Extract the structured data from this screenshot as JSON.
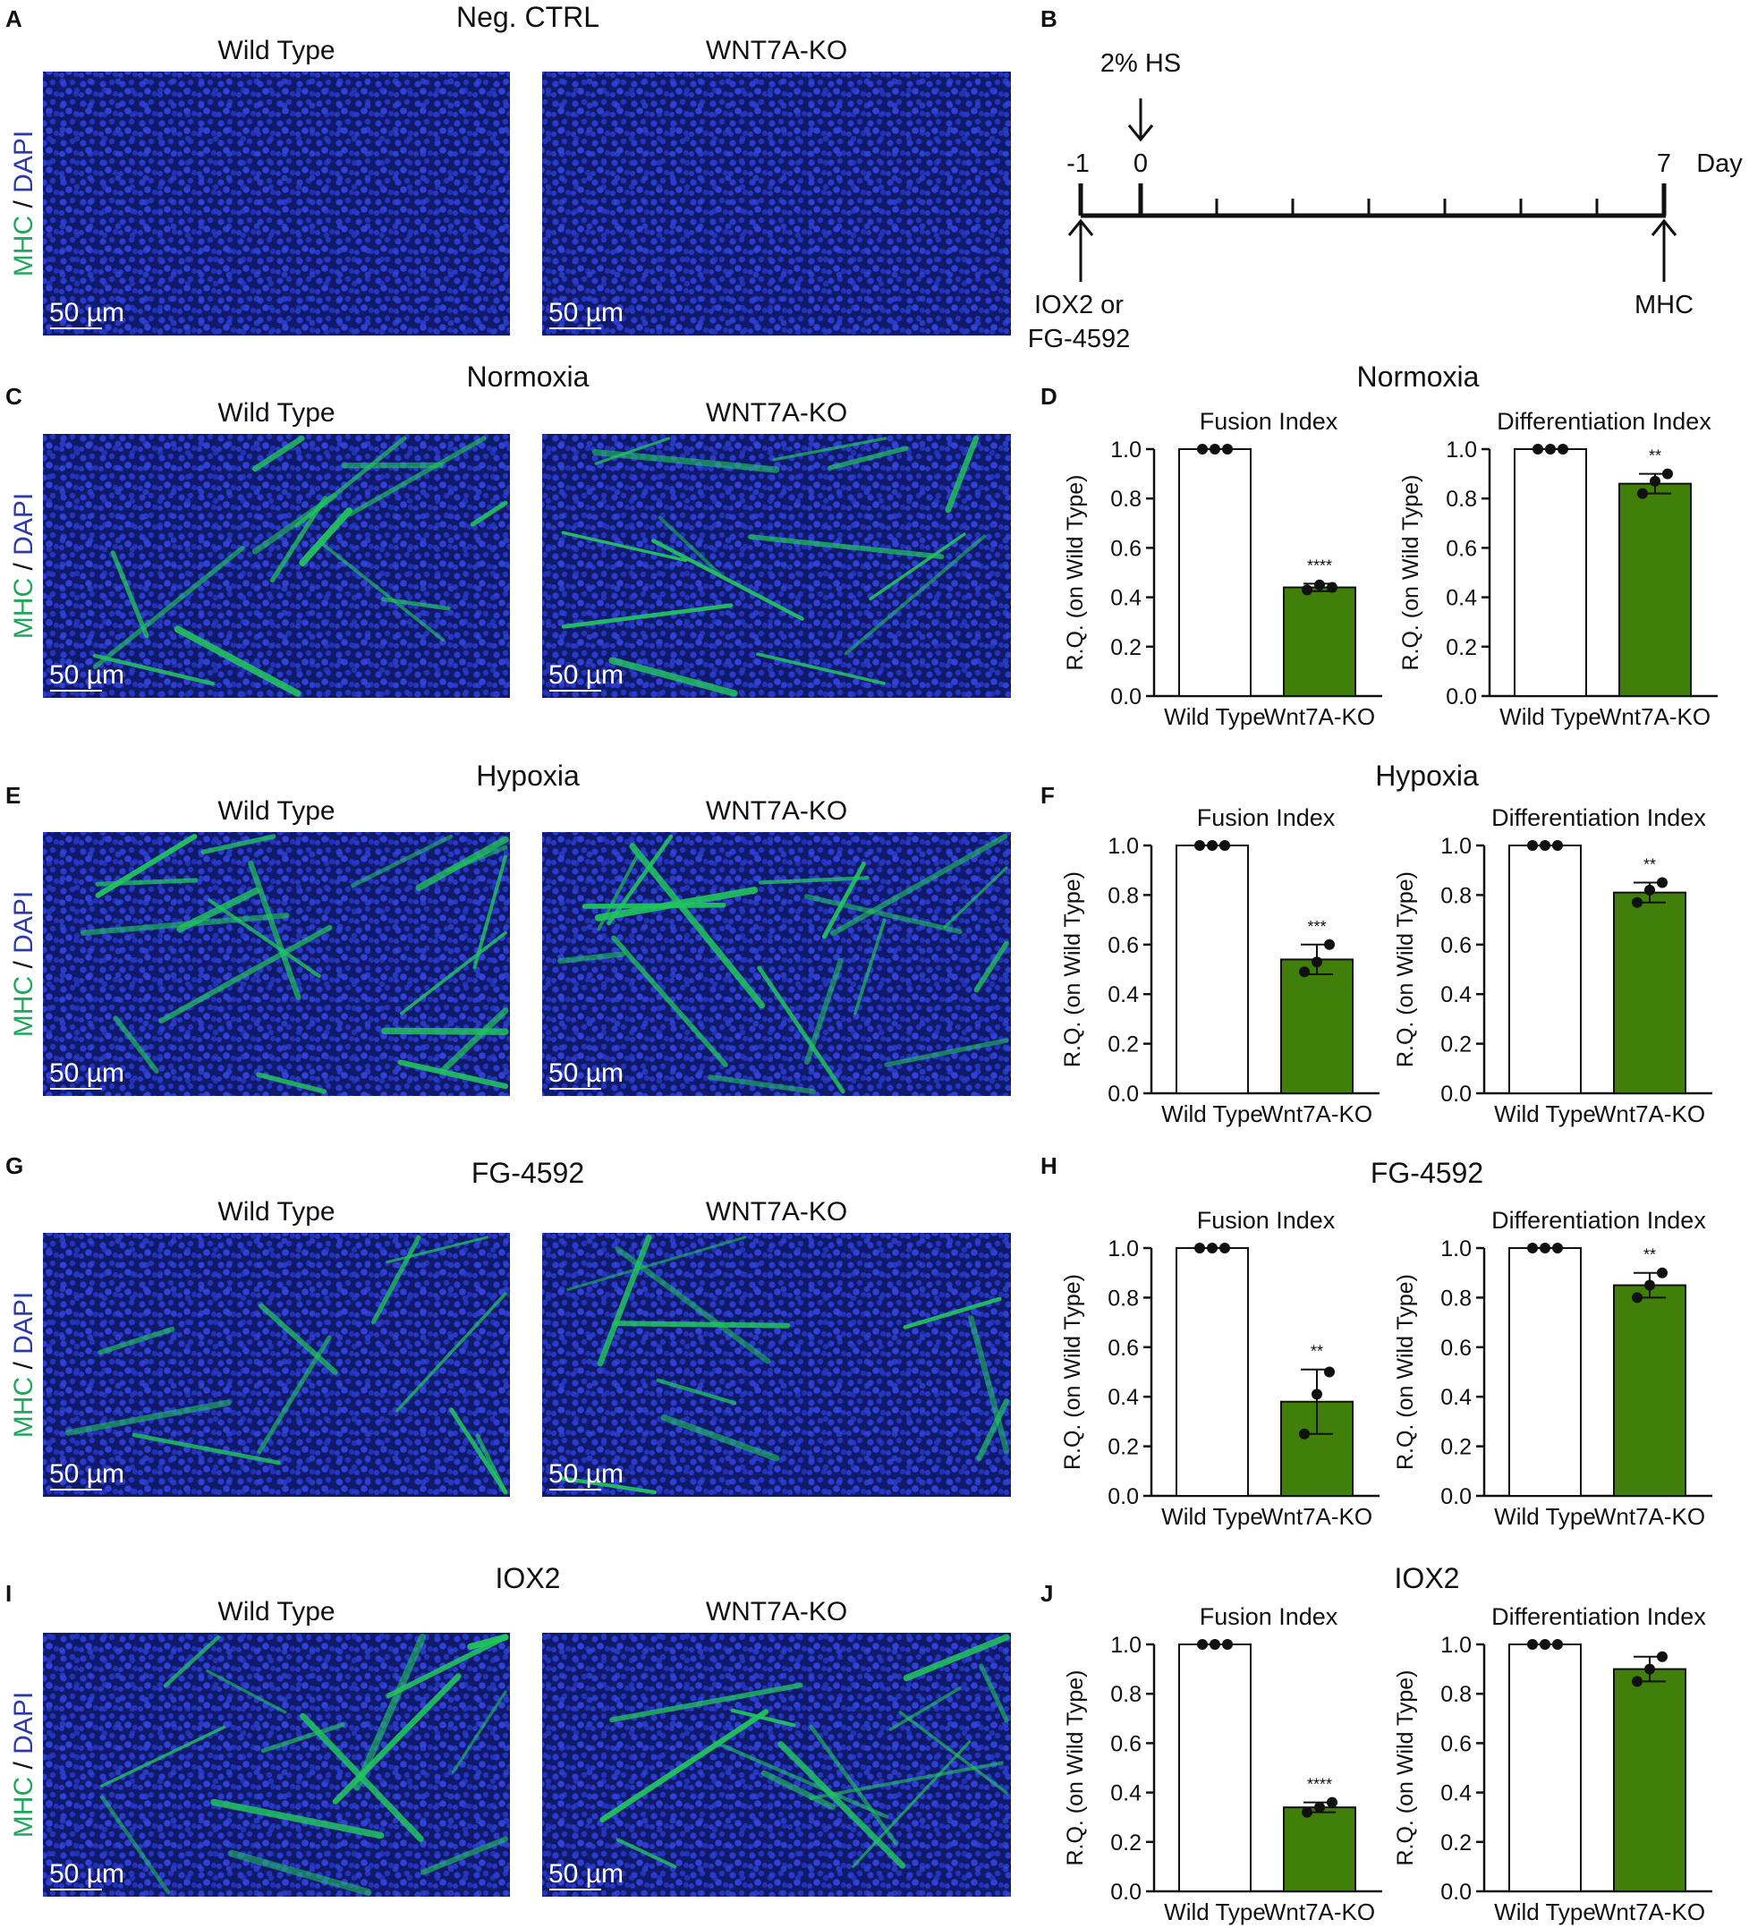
{
  "colors": {
    "mhc_green": "#22c55e",
    "dapi_blue": "#2633b8",
    "bar_wt": "#ffffff",
    "bar_ko": "#3f7f0a",
    "axis": "#111111"
  },
  "panel_letters": [
    "A",
    "B",
    "C",
    "D",
    "E",
    "F",
    "G",
    "H",
    "I",
    "J"
  ],
  "neg_ctrl": {
    "title": "Neg. CTRL"
  },
  "image_rows": [
    {
      "title": "Neg. CTRL",
      "left_label": "Wild Type",
      "right_label": "WNT7A-KO",
      "stain_mhc": "MHC",
      "stain_sep": " / ",
      "stain_dapi": "DAPI",
      "scale": "50 µm"
    },
    {
      "title": "Normoxia",
      "left_label": "Wild Type",
      "right_label": "WNT7A-KO",
      "stain_mhc": "MHC",
      "stain_sep": " / ",
      "stain_dapi": "DAPI",
      "scale": "50 µm"
    },
    {
      "title": "Hypoxia",
      "left_label": "Wild Type",
      "right_label": "WNT7A-KO",
      "stain_mhc": "MHC",
      "stain_sep": " / ",
      "stain_dapi": "DAPI",
      "scale": "50 µm"
    },
    {
      "title": "FG-4592",
      "left_label": "Wild Type",
      "right_label": "WNT7A-KO",
      "stain_mhc": "MHC",
      "stain_sep": " / ",
      "stain_dapi": "DAPI",
      "scale": "50 µm"
    },
    {
      "title": "IOX2",
      "left_label": "Wild Type",
      "right_label": "WNT7A-KO",
      "stain_mhc": "MHC",
      "stain_sep": " / ",
      "stain_dapi": "DAPI",
      "scale": "50 µm"
    }
  ],
  "timeline": {
    "hs_label": "2% HS",
    "day_minus1": "-1",
    "day_0": "0",
    "day_7": "7",
    "day_unit": "Day",
    "drug_label_1": "IOX2 or",
    "drug_label_2": "FG-4592",
    "readout": "MHC"
  },
  "chart_titles": [
    "Normoxia",
    "Hypoxia",
    "FG-4592",
    "IOX2"
  ],
  "chart_data": [
    {
      "type": "bar",
      "panel": "D",
      "condition": "Normoxia",
      "title": "Fusion Index",
      "ylabel": "R.Q. (on Wild Type)",
      "ylim": [
        0,
        1.0
      ],
      "yticks": [
        "0.0",
        "0.2",
        "0.4",
        "0.6",
        "0.8",
        "1.0"
      ],
      "categories": [
        "Wild Type",
        "Wnt7A-KO"
      ],
      "values": [
        1.0,
        0.44
      ],
      "errors": [
        0,
        0.015
      ],
      "points": [
        [
          1.0,
          1.0,
          1.0
        ],
        [
          0.43,
          0.45,
          0.44
        ]
      ],
      "significance": "****"
    },
    {
      "type": "bar",
      "panel": "D",
      "condition": "Normoxia",
      "title": "Differentiation Index",
      "ylabel": "R.Q. (on Wild Type)",
      "ylim": [
        0,
        1.0
      ],
      "yticks": [
        "0.0",
        "0.2",
        "0.4",
        "0.6",
        "0.8",
        "1.0"
      ],
      "categories": [
        "Wild Type",
        "Wnt7A-KO"
      ],
      "values": [
        1.0,
        0.86
      ],
      "errors": [
        0,
        0.04
      ],
      "points": [
        [
          1.0,
          1.0,
          1.0
        ],
        [
          0.82,
          0.87,
          0.9
        ]
      ],
      "significance": "**"
    },
    {
      "type": "bar",
      "panel": "F",
      "condition": "Hypoxia",
      "title": "Fusion Index",
      "ylabel": "R.Q. (on Wild Type)",
      "ylim": [
        0,
        1.0
      ],
      "yticks": [
        "0.0",
        "0.2",
        "0.4",
        "0.6",
        "0.8",
        "1.0"
      ],
      "categories": [
        "Wild Type",
        "Wnt7A-KO"
      ],
      "values": [
        1.0,
        0.54
      ],
      "errors": [
        0,
        0.06
      ],
      "points": [
        [
          1.0,
          1.0,
          1.0
        ],
        [
          0.49,
          0.53,
          0.6
        ]
      ],
      "significance": "***"
    },
    {
      "type": "bar",
      "panel": "F",
      "condition": "Hypoxia",
      "title": "Differentiation Index",
      "ylabel": "R.Q. (on Wild Type)",
      "ylim": [
        0,
        1.0
      ],
      "yticks": [
        "0.0",
        "0.2",
        "0.4",
        "0.6",
        "0.8",
        "1.0"
      ],
      "categories": [
        "Wild Type",
        "Wnt7A-KO"
      ],
      "values": [
        1.0,
        0.81
      ],
      "errors": [
        0,
        0.04
      ],
      "points": [
        [
          1.0,
          1.0,
          1.0
        ],
        [
          0.77,
          0.82,
          0.85
        ]
      ],
      "significance": "**"
    },
    {
      "type": "bar",
      "panel": "H",
      "condition": "FG-4592",
      "title": "Fusion Index",
      "ylabel": "R.Q. (on Wild Type)",
      "ylim": [
        0,
        1.0
      ],
      "yticks": [
        "0.0",
        "0.2",
        "0.4",
        "0.6",
        "0.8",
        "1.0"
      ],
      "categories": [
        "Wild Type",
        "Wnt7A-KO"
      ],
      "values": [
        1.0,
        0.38
      ],
      "errors": [
        0,
        0.13
      ],
      "points": [
        [
          1.0,
          1.0,
          1.0
        ],
        [
          0.25,
          0.41,
          0.5
        ]
      ],
      "significance": "**"
    },
    {
      "type": "bar",
      "panel": "H",
      "condition": "FG-4592",
      "title": "Differentiation Index",
      "ylabel": "R.Q. (on Wild Type)",
      "ylim": [
        0,
        1.0
      ],
      "yticks": [
        "0.0",
        "0.2",
        "0.4",
        "0.6",
        "0.8",
        "1.0"
      ],
      "categories": [
        "Wild Type",
        "Wnt7A-KO"
      ],
      "values": [
        1.0,
        0.85
      ],
      "errors": [
        0,
        0.05
      ],
      "points": [
        [
          1.0,
          1.0,
          1.0
        ],
        [
          0.8,
          0.85,
          0.9
        ]
      ],
      "significance": "**"
    },
    {
      "type": "bar",
      "panel": "J",
      "condition": "IOX2",
      "title": "Fusion Index",
      "ylabel": "R.Q. (on Wild Type)",
      "ylim": [
        0,
        1.0
      ],
      "yticks": [
        "0.0",
        "0.2",
        "0.4",
        "0.6",
        "0.8",
        "1.0"
      ],
      "categories": [
        "Wild Type",
        "Wnt7A-KO"
      ],
      "values": [
        1.0,
        0.34
      ],
      "errors": [
        0,
        0.02
      ],
      "points": [
        [
          1.0,
          1.0,
          1.0
        ],
        [
          0.32,
          0.34,
          0.36
        ]
      ],
      "significance": "****"
    },
    {
      "type": "bar",
      "panel": "J",
      "condition": "IOX2",
      "title": "Differentiation Index",
      "ylabel": "R.Q. (on Wild Type)",
      "ylim": [
        0,
        1.0
      ],
      "yticks": [
        "0.0",
        "0.2",
        "0.4",
        "0.6",
        "0.8",
        "1.0"
      ],
      "categories": [
        "Wild Type",
        "Wnt7A-KO"
      ],
      "values": [
        1.0,
        0.9
      ],
      "errors": [
        0,
        0.05
      ],
      "points": [
        [
          1.0,
          1.0,
          1.0
        ],
        [
          0.85,
          0.9,
          0.95
        ]
      ],
      "significance": ""
    }
  ]
}
